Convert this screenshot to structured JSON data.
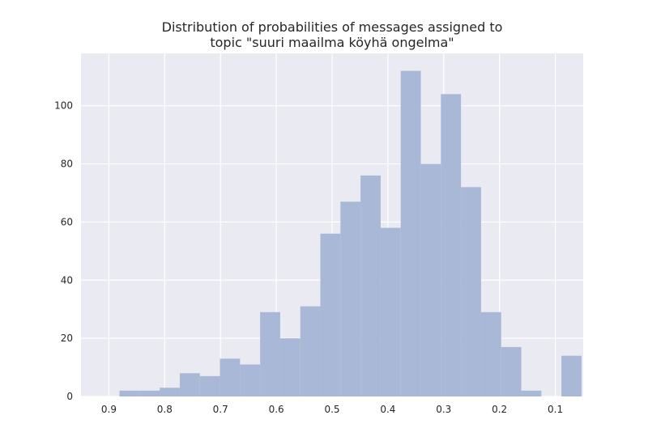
{
  "chart_data": {
    "type": "bar",
    "title_lines": [
      "Distribution of probabilities of messages assigned to",
      "topic \"suuri maailma köyhä ongelma\""
    ],
    "xlabel": "",
    "ylabel": "",
    "x_axis_reversed": true,
    "xlim": [
      0.95,
      0.05
    ],
    "ylim": [
      0,
      118
    ],
    "grid": true,
    "x_ticks": [
      0.9,
      0.8,
      0.7,
      0.6,
      0.5,
      0.4,
      0.3,
      0.2,
      0.1
    ],
    "x_tick_labels": [
      "0.9",
      "0.8",
      "0.7",
      "0.6",
      "0.5",
      "0.4",
      "0.3",
      "0.2",
      "0.1"
    ],
    "y_ticks": [
      0,
      20,
      40,
      60,
      80,
      100
    ],
    "y_tick_labels": [
      "0",
      "20",
      "40",
      "60",
      "80",
      "100"
    ],
    "bars": [
      {
        "x_start": 0.881,
        "x_end": 0.845,
        "value": 2
      },
      {
        "x_start": 0.845,
        "x_end": 0.809,
        "value": 2
      },
      {
        "x_start": 0.809,
        "x_end": 0.773,
        "value": 3
      },
      {
        "x_start": 0.773,
        "x_end": 0.737,
        "value": 8
      },
      {
        "x_start": 0.737,
        "x_end": 0.701,
        "value": 7
      },
      {
        "x_start": 0.701,
        "x_end": 0.665,
        "value": 13
      },
      {
        "x_start": 0.665,
        "x_end": 0.629,
        "value": 11
      },
      {
        "x_start": 0.629,
        "x_end": 0.593,
        "value": 29
      },
      {
        "x_start": 0.593,
        "x_end": 0.557,
        "value": 20
      },
      {
        "x_start": 0.557,
        "x_end": 0.521,
        "value": 31
      },
      {
        "x_start": 0.521,
        "x_end": 0.485,
        "value": 56
      },
      {
        "x_start": 0.485,
        "x_end": 0.449,
        "value": 67
      },
      {
        "x_start": 0.449,
        "x_end": 0.413,
        "value": 76
      },
      {
        "x_start": 0.413,
        "x_end": 0.377,
        "value": 58
      },
      {
        "x_start": 0.377,
        "x_end": 0.341,
        "value": 112
      },
      {
        "x_start": 0.341,
        "x_end": 0.305,
        "value": 80
      },
      {
        "x_start": 0.305,
        "x_end": 0.269,
        "value": 104
      },
      {
        "x_start": 0.269,
        "x_end": 0.233,
        "value": 72
      },
      {
        "x_start": 0.233,
        "x_end": 0.197,
        "value": 29
      },
      {
        "x_start": 0.197,
        "x_end": 0.161,
        "value": 17
      },
      {
        "x_start": 0.161,
        "x_end": 0.125,
        "value": 2
      },
      {
        "x_start": 0.125,
        "x_end": 0.089,
        "value": 0
      },
      {
        "x_start": 0.089,
        "x_end": 0.053,
        "value": 14
      }
    ],
    "colors": {
      "bar": "#a9b8d6",
      "plot_background": "#eaeaf2",
      "grid": "#ffffff",
      "text": "#262626"
    }
  }
}
